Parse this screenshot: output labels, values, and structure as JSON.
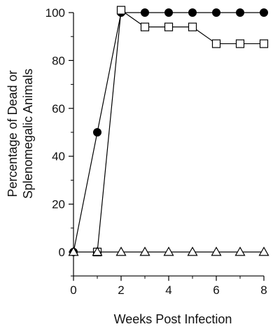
{
  "chart_data": {
    "type": "line",
    "title": "",
    "xlabel": "Weeks Post Infection",
    "ylabel_lines": [
      "Percentage of Dead or",
      "Splenomegalic Animals"
    ],
    "xlim": [
      0,
      8
    ],
    "ylim": [
      -10,
      100
    ],
    "x_ticks": [
      0,
      2,
      4,
      6,
      8
    ],
    "x_minor_ticks": [
      1,
      3,
      5,
      7
    ],
    "y_ticks": [
      0,
      20,
      40,
      60,
      80,
      100
    ],
    "y_minor_ticks": [
      -10,
      10,
      30,
      50,
      70,
      90
    ],
    "grid": false,
    "legend": "none",
    "series": [
      {
        "marker": "filled-circle",
        "color": "#000000",
        "points": [
          [
            0,
            0
          ],
          [
            1,
            50
          ],
          [
            2,
            100
          ],
          [
            3,
            100
          ],
          [
            4,
            100
          ],
          [
            5,
            100
          ],
          [
            6,
            100
          ],
          [
            7,
            100
          ],
          [
            8,
            100
          ]
        ]
      },
      {
        "marker": "open-square",
        "color": "#000000",
        "points": [
          [
            1,
            0
          ],
          [
            2,
            101
          ],
          [
            3,
            94
          ],
          [
            4,
            94
          ],
          [
            5,
            94
          ],
          [
            6,
            87
          ],
          [
            7,
            87
          ],
          [
            8,
            87
          ]
        ]
      },
      {
        "marker": "open-triangle",
        "color": "#000000",
        "points": [
          [
            0,
            0
          ],
          [
            1,
            0
          ],
          [
            2,
            0
          ],
          [
            3,
            0
          ],
          [
            4,
            0
          ],
          [
            5,
            0
          ],
          [
            6,
            0
          ],
          [
            7,
            0
          ],
          [
            8,
            0
          ]
        ]
      }
    ]
  }
}
